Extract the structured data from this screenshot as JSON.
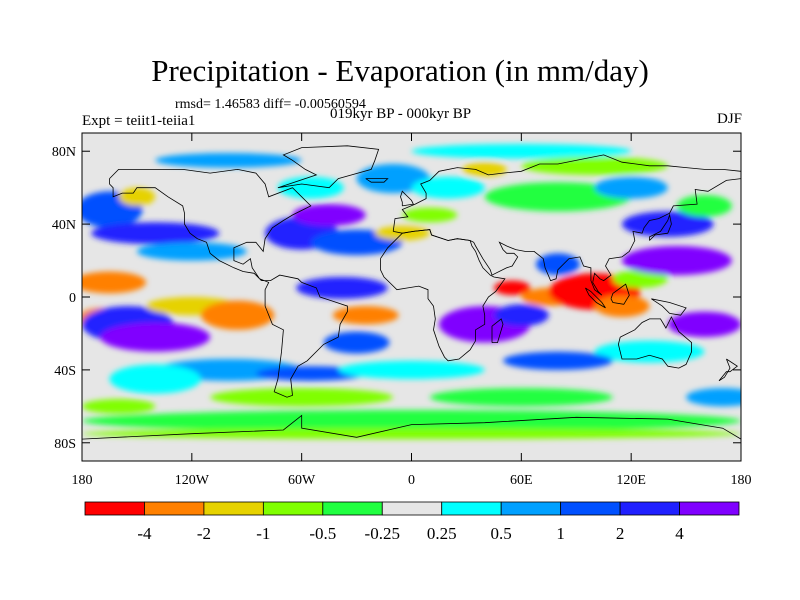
{
  "title": "Precipitation - Evaporation (in mm/day)",
  "stats": "rmsd= 1.46583 diff= -0.00560594",
  "experiment": "Expt = teiit1-teiia1",
  "period": "019kyr BP - 000kyr BP",
  "season": "DJF",
  "map": {
    "background_color": "#e6e6e6",
    "lon_range": [
      -180,
      180
    ],
    "lat_range": [
      -90,
      90
    ],
    "x_ticks": [
      {
        "lon": -180,
        "label": "180"
      },
      {
        "lon": -120,
        "label": "120W"
      },
      {
        "lon": -60,
        "label": "60W"
      },
      {
        "lon": 0,
        "label": "0"
      },
      {
        "lon": 60,
        "label": "60E"
      },
      {
        "lon": 120,
        "label": "120E"
      },
      {
        "lon": 180,
        "label": "180"
      }
    ],
    "y_ticks": [
      {
        "lat": 80,
        "label": "80N"
      },
      {
        "lat": 40,
        "label": "40N"
      },
      {
        "lat": 0,
        "label": "0"
      },
      {
        "lat": -40,
        "label": "40S"
      },
      {
        "lat": -80,
        "label": "80S"
      }
    ]
  },
  "colorbar": {
    "colors": [
      "#ff0000",
      "#ff8000",
      "#e6d200",
      "#80ff00",
      "#20ff40",
      "#e6e6e6",
      "#00ffff",
      "#00a0ff",
      "#0050ff",
      "#2020ff",
      "#8000ff"
    ],
    "labels": [
      "-4",
      "-2",
      "-1",
      "-0.5",
      "-0.25",
      "0.25",
      "0.5",
      "1",
      "2",
      "4"
    ]
  },
  "color_key": {
    "-5": "#ff0000",
    "-4": "#ff8000",
    "-3": "#e6d200",
    "-2": "#80ff00",
    "-1": "#20ff40",
    "1": "#00ffff",
    "2": "#00a0ff",
    "3": "#0050ff",
    "4": "#2020ff",
    "5": "#8000ff"
  },
  "field_patches": [
    {
      "lon": -165,
      "lat": 48,
      "rx": 18,
      "ry": 10,
      "level": 3
    },
    {
      "lon": -150,
      "lat": 55,
      "rx": 10,
      "ry": 5,
      "level": -3
    },
    {
      "lon": -140,
      "lat": 35,
      "rx": 35,
      "ry": 6,
      "level": 4
    },
    {
      "lon": -120,
      "lat": 25,
      "rx": 30,
      "ry": 5,
      "level": 2
    },
    {
      "lon": -165,
      "lat": 8,
      "rx": 20,
      "ry": 6,
      "level": -4
    },
    {
      "lon": -170,
      "lat": -12,
      "rx": 12,
      "ry": 6,
      "level": -4
    },
    {
      "lon": -155,
      "lat": -15,
      "rx": 25,
      "ry": 10,
      "level": 4
    },
    {
      "lon": -140,
      "lat": -22,
      "rx": 30,
      "ry": 8,
      "level": 5
    },
    {
      "lon": -120,
      "lat": -5,
      "rx": 25,
      "ry": 5,
      "level": -3
    },
    {
      "lon": -95,
      "lat": -10,
      "rx": 20,
      "ry": 8,
      "level": -4
    },
    {
      "lon": -100,
      "lat": -40,
      "rx": 40,
      "ry": 6,
      "level": 2
    },
    {
      "lon": -140,
      "lat": -45,
      "rx": 25,
      "ry": 8,
      "level": 1
    },
    {
      "lon": -60,
      "lat": 35,
      "rx": 20,
      "ry": 9,
      "level": 4
    },
    {
      "lon": -45,
      "lat": 45,
      "rx": 20,
      "ry": 6,
      "level": 5
    },
    {
      "lon": -30,
      "lat": 30,
      "rx": 25,
      "ry": 7,
      "level": 3
    },
    {
      "lon": -55,
      "lat": 60,
      "rx": 18,
      "ry": 6,
      "level": 1
    },
    {
      "lon": -38,
      "lat": 5,
      "rx": 25,
      "ry": 6,
      "level": 4
    },
    {
      "lon": -25,
      "lat": -10,
      "rx": 18,
      "ry": 5,
      "level": -4
    },
    {
      "lon": -30,
      "lat": -25,
      "rx": 18,
      "ry": 6,
      "level": 3
    },
    {
      "lon": -55,
      "lat": -42,
      "rx": 30,
      "ry": 4,
      "level": 3
    },
    {
      "lon": -10,
      "lat": 65,
      "rx": 20,
      "ry": 8,
      "level": 2
    },
    {
      "lon": 20,
      "lat": 60,
      "rx": 20,
      "ry": 6,
      "level": 1
    },
    {
      "lon": 40,
      "lat": 70,
      "rx": 12,
      "ry": 4,
      "level": -3
    },
    {
      "lon": 10,
      "lat": 45,
      "rx": 15,
      "ry": 4,
      "level": -2
    },
    {
      "lon": -5,
      "lat": 35,
      "rx": 15,
      "ry": 4,
      "level": -3
    },
    {
      "lon": 40,
      "lat": -15,
      "rx": 25,
      "ry": 10,
      "level": 5
    },
    {
      "lon": 60,
      "lat": -10,
      "rx": 15,
      "ry": 6,
      "level": 4
    },
    {
      "lon": 55,
      "lat": 5,
      "rx": 10,
      "ry": 4,
      "level": -5
    },
    {
      "lon": 75,
      "lat": 0,
      "rx": 15,
      "ry": 5,
      "level": -4
    },
    {
      "lon": 80,
      "lat": 18,
      "rx": 12,
      "ry": 6,
      "level": 3
    },
    {
      "lon": 100,
      "lat": 3,
      "rx": 25,
      "ry": 10,
      "level": -5
    },
    {
      "lon": 115,
      "lat": -5,
      "rx": 15,
      "ry": 6,
      "level": -4
    },
    {
      "lon": 125,
      "lat": 10,
      "rx": 15,
      "ry": 5,
      "level": -2
    },
    {
      "lon": 145,
      "lat": 20,
      "rx": 30,
      "ry": 8,
      "level": 5
    },
    {
      "lon": 140,
      "lat": 40,
      "rx": 25,
      "ry": 7,
      "level": 4
    },
    {
      "lon": 160,
      "lat": 50,
      "rx": 15,
      "ry": 6,
      "level": -1
    },
    {
      "lon": 160,
      "lat": -15,
      "rx": 20,
      "ry": 7,
      "level": 5
    },
    {
      "lon": 130,
      "lat": -30,
      "rx": 30,
      "ry": 6,
      "level": 1
    },
    {
      "lon": 80,
      "lat": -35,
      "rx": 30,
      "ry": 5,
      "level": 3
    },
    {
      "lon": 0,
      "lat": -40,
      "rx": 40,
      "ry": 5,
      "level": 1
    },
    {
      "lon": 60,
      "lat": -55,
      "rx": 50,
      "ry": 5,
      "level": -1
    },
    {
      "lon": -60,
      "lat": -55,
      "rx": 50,
      "ry": 5,
      "level": -2
    },
    {
      "lon": 170,
      "lat": -55,
      "rx": 20,
      "ry": 5,
      "level": 2
    },
    {
      "lon": -160,
      "lat": -60,
      "rx": 20,
      "ry": 4,
      "level": -2
    },
    {
      "lon": 0,
      "lat": -68,
      "rx": 180,
      "ry": 6,
      "level": -1
    },
    {
      "lon": 0,
      "lat": -75,
      "rx": 180,
      "ry": 3,
      "level": -2
    },
    {
      "lon": 60,
      "lat": 80,
      "rx": 60,
      "ry": 4,
      "level": 1
    },
    {
      "lon": -100,
      "lat": 75,
      "rx": 40,
      "ry": 4,
      "level": 2
    },
    {
      "lon": 100,
      "lat": 72,
      "rx": 40,
      "ry": 5,
      "level": -2
    },
    {
      "lon": 80,
      "lat": 55,
      "rx": 40,
      "ry": 8,
      "level": -1
    },
    {
      "lon": 120,
      "lat": 60,
      "rx": 20,
      "ry": 6,
      "level": 2
    }
  ],
  "coastlines": [
    [
      [
        -165,
        65
      ],
      [
        -160,
        70
      ],
      [
        -140,
        70
      ],
      [
        -125,
        70
      ],
      [
        -110,
        68
      ],
      [
        -95,
        70
      ],
      [
        -85,
        68
      ],
      [
        -80,
        62
      ],
      [
        -78,
        55
      ],
      [
        -65,
        60
      ],
      [
        -60,
        55
      ],
      [
        -55,
        50
      ],
      [
        -65,
        45
      ],
      [
        -70,
        42
      ],
      [
        -76,
        38
      ],
      [
        -80,
        32
      ],
      [
        -81,
        25
      ],
      [
        -85,
        30
      ],
      [
        -90,
        30
      ],
      [
        -97,
        27
      ],
      [
        -97,
        20
      ],
      [
        -92,
        18
      ],
      [
        -88,
        21
      ],
      [
        -87,
        16
      ],
      [
        -83,
        10
      ],
      [
        -78,
        8
      ],
      [
        -80,
        4
      ],
      [
        -80,
        -5
      ],
      [
        -76,
        -15
      ],
      [
        -70,
        -18
      ],
      [
        -71,
        -30
      ],
      [
        -73,
        -45
      ],
      [
        -75,
        -52
      ],
      [
        -68,
        -55
      ],
      [
        -65,
        -54
      ],
      [
        -66,
        -45
      ],
      [
        -62,
        -38
      ],
      [
        -57,
        -35
      ],
      [
        -48,
        -26
      ],
      [
        -40,
        -22
      ],
      [
        -39,
        -15
      ],
      [
        -35,
        -8
      ],
      [
        -35,
        -5
      ],
      [
        -44,
        -2
      ],
      [
        -50,
        0
      ],
      [
        -52,
        5
      ],
      [
        -60,
        8
      ],
      [
        -62,
        10
      ],
      [
        -72,
        12
      ],
      [
        -77,
        9
      ],
      [
        -82,
        9
      ],
      [
        -86,
        13
      ],
      [
        -92,
        14
      ],
      [
        -97,
        16
      ],
      [
        -105,
        20
      ],
      [
        -110,
        24
      ],
      [
        -112,
        30
      ],
      [
        -117,
        32
      ],
      [
        -121,
        35
      ],
      [
        -124,
        40
      ],
      [
        -124,
        46
      ],
      [
        -125,
        50
      ],
      [
        -133,
        55
      ],
      [
        -140,
        60
      ],
      [
        -150,
        60
      ],
      [
        -152,
        57
      ],
      [
        -158,
        57
      ],
      [
        -163,
        55
      ],
      [
        -163,
        60
      ],
      [
        -165,
        62
      ],
      [
        -165,
        65
      ]
    ],
    [
      [
        -73,
        60
      ],
      [
        -60,
        62
      ],
      [
        -45,
        60
      ],
      [
        -40,
        65
      ],
      [
        -22,
        70
      ],
      [
        -20,
        75
      ],
      [
        -18,
        81
      ],
      [
        -35,
        83
      ],
      [
        -60,
        82
      ],
      [
        -70,
        78
      ],
      [
        -65,
        75
      ],
      [
        -58,
        70
      ],
      [
        -52,
        67
      ],
      [
        -73,
        60
      ]
    ],
    [
      [
        -10,
        36
      ],
      [
        -9,
        43
      ],
      [
        -2,
        44
      ],
      [
        -5,
        48
      ],
      [
        2,
        51
      ],
      [
        8,
        54
      ],
      [
        8,
        57
      ],
      [
        5,
        62
      ],
      [
        10,
        64
      ],
      [
        15,
        69
      ],
      [
        25,
        71
      ],
      [
        35,
        70
      ],
      [
        42,
        67
      ],
      [
        50,
        68
      ],
      [
        60,
        69
      ],
      [
        70,
        73
      ],
      [
        80,
        73
      ],
      [
        95,
        76
      ],
      [
        105,
        78
      ],
      [
        115,
        74
      ],
      [
        130,
        72
      ],
      [
        140,
        72
      ],
      [
        150,
        71
      ],
      [
        160,
        70
      ],
      [
        170,
        70
      ],
      [
        180,
        69
      ],
      [
        180,
        65
      ],
      [
        172,
        64
      ],
      [
        162,
        58
      ],
      [
        155,
        59
      ],
      [
        156,
        51
      ],
      [
        143,
        50
      ],
      [
        141,
        46
      ],
      [
        135,
        43
      ],
      [
        130,
        42
      ],
      [
        127,
        38
      ],
      [
        126,
        35
      ],
      [
        121,
        36
      ],
      [
        122,
        31
      ],
      [
        119,
        25
      ],
      [
        115,
        22
      ],
      [
        108,
        21
      ],
      [
        106,
        17
      ],
      [
        109,
        12
      ],
      [
        105,
        9
      ],
      [
        103,
        10
      ],
      [
        100,
        13
      ],
      [
        99,
        8
      ],
      [
        102,
        3
      ],
      [
        104,
        1
      ],
      [
        100,
        4
      ],
      [
        98,
        9
      ],
      [
        98,
        16
      ],
      [
        94,
        17
      ],
      [
        92,
        22
      ],
      [
        86,
        21
      ],
      [
        80,
        15
      ],
      [
        79,
        10
      ],
      [
        76,
        9
      ],
      [
        73,
        16
      ],
      [
        72,
        21
      ],
      [
        67,
        25
      ],
      [
        62,
        25
      ],
      [
        57,
        26
      ],
      [
        52,
        28
      ],
      [
        48,
        30
      ],
      [
        50,
        26
      ],
      [
        52,
        24
      ],
      [
        56,
        24
      ],
      [
        58,
        22
      ],
      [
        55,
        17
      ],
      [
        52,
        16
      ],
      [
        44,
        12
      ],
      [
        43,
        15
      ],
      [
        39,
        21
      ],
      [
        35,
        28
      ],
      [
        34,
        30
      ],
      [
        32,
        31
      ],
      [
        25,
        32
      ],
      [
        20,
        31
      ],
      [
        11,
        34
      ],
      [
        10,
        37
      ],
      [
        1,
        36
      ],
      [
        -5,
        35
      ],
      [
        -10,
        36
      ]
    ],
    [
      [
        -17,
        21
      ],
      [
        -17,
        15
      ],
      [
        -15,
        11
      ],
      [
        -12,
        8
      ],
      [
        -8,
        4
      ],
      [
        -2,
        5
      ],
      [
        4,
        6
      ],
      [
        9,
        4
      ],
      [
        9,
        -1
      ],
      [
        12,
        -5
      ],
      [
        13,
        -12
      ],
      [
        12,
        -18
      ],
      [
        15,
        -27
      ],
      [
        18,
        -33
      ],
      [
        20,
        -35
      ],
      [
        26,
        -34
      ],
      [
        32,
        -29
      ],
      [
        35,
        -24
      ],
      [
        35,
        -18
      ],
      [
        40,
        -15
      ],
      [
        40,
        -10
      ],
      [
        39,
        -5
      ],
      [
        42,
        0
      ],
      [
        46,
        3
      ],
      [
        51,
        10
      ],
      [
        45,
        11
      ],
      [
        43,
        12
      ],
      [
        39,
        16
      ],
      [
        37,
        20
      ],
      [
        35,
        25
      ],
      [
        33,
        28
      ],
      [
        32,
        31
      ],
      [
        25,
        32
      ],
      [
        20,
        31
      ],
      [
        11,
        34
      ],
      [
        10,
        37
      ],
      [
        1,
        36
      ],
      [
        -5,
        35
      ],
      [
        -10,
        30
      ],
      [
        -13,
        27
      ],
      [
        -17,
        21
      ]
    ],
    [
      [
        114,
        -22
      ],
      [
        113,
        -26
      ],
      [
        115,
        -34
      ],
      [
        123,
        -34
      ],
      [
        130,
        -32
      ],
      [
        137,
        -34
      ],
      [
        140,
        -38
      ],
      [
        146,
        -39
      ],
      [
        150,
        -37
      ],
      [
        153,
        -30
      ],
      [
        153,
        -25
      ],
      [
        146,
        -19
      ],
      [
        142,
        -11
      ],
      [
        139,
        -17
      ],
      [
        136,
        -12
      ],
      [
        130,
        -12
      ],
      [
        126,
        -14
      ],
      [
        122,
        -18
      ],
      [
        114,
        -22
      ]
    ],
    [
      [
        44,
        -25
      ],
      [
        47,
        -25
      ],
      [
        50,
        -15
      ],
      [
        49,
        -12
      ],
      [
        44,
        -16
      ],
      [
        44,
        -25
      ]
    ],
    [
      [
        -5,
        50
      ],
      [
        1,
        51
      ],
      [
        0,
        53
      ],
      [
        -3,
        56
      ],
      [
        -5,
        58
      ],
      [
        -6,
        55
      ],
      [
        -5,
        52
      ],
      [
        -5,
        50
      ]
    ],
    [
      [
        130,
        31
      ],
      [
        133,
        34
      ],
      [
        140,
        35
      ],
      [
        142,
        40
      ],
      [
        141,
        45
      ],
      [
        140,
        42
      ],
      [
        136,
        36
      ],
      [
        130,
        33
      ],
      [
        130,
        31
      ]
    ],
    [
      [
        95,
        5
      ],
      [
        98,
        3
      ],
      [
        104,
        -3
      ],
      [
        106,
        -6
      ],
      [
        101,
        -3
      ],
      [
        97,
        1
      ],
      [
        95,
        5
      ]
    ],
    [
      [
        109,
        -1
      ],
      [
        110,
        2
      ],
      [
        117,
        7
      ],
      [
        119,
        1
      ],
      [
        116,
        -4
      ],
      [
        110,
        -3
      ],
      [
        109,
        -1
      ]
    ],
    [
      [
        131,
        -1
      ],
      [
        141,
        -3
      ],
      [
        150,
        -6
      ],
      [
        147,
        -10
      ],
      [
        141,
        -9
      ],
      [
        137,
        -5
      ],
      [
        131,
        -1
      ]
    ],
    [
      [
        -25,
        65
      ],
      [
        -13,
        65
      ],
      [
        -15,
        63
      ],
      [
        -22,
        63
      ],
      [
        -25,
        65
      ]
    ],
    [
      [
        172,
        -34
      ],
      [
        178,
        -38
      ],
      [
        174,
        -41
      ],
      [
        172,
        -41
      ],
      [
        168,
        -46
      ],
      [
        171,
        -44
      ],
      [
        174,
        -39
      ],
      [
        172,
        -34
      ]
    ],
    [
      [
        -180,
        -78
      ],
      [
        -120,
        -75
      ],
      [
        -70,
        -73
      ],
      [
        -60,
        -65
      ],
      [
        -60,
        -72
      ],
      [
        -30,
        -77
      ],
      [
        0,
        -70
      ],
      [
        40,
        -69
      ],
      [
        90,
        -66
      ],
      [
        140,
        -67
      ],
      [
        170,
        -72
      ],
      [
        180,
        -78
      ]
    ]
  ]
}
